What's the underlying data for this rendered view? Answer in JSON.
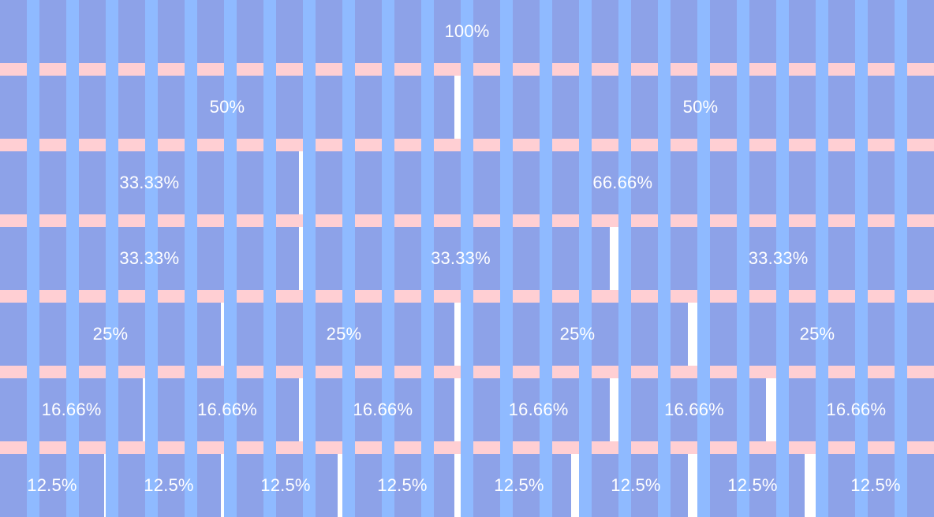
{
  "colors": {
    "cell": "#8da2e8",
    "column_stripe": "#8fbaff",
    "gutter": "#ffcfd3",
    "background": "#ffffff",
    "label": "#ffffff"
  },
  "grid": {
    "columns": 12,
    "rows": [
      {
        "span": 12,
        "labels": [
          "100%"
        ]
      },
      {
        "span": 6,
        "labels": [
          "50%",
          "50%"
        ]
      },
      {
        "span": [
          4,
          8
        ],
        "labels": [
          "33.33%",
          "66.66%"
        ]
      },
      {
        "span": 4,
        "labels": [
          "33.33%",
          "33.33%",
          "33.33%"
        ]
      },
      {
        "span": 3,
        "labels": [
          "25%",
          "25%",
          "25%",
          "25%"
        ]
      },
      {
        "span": 2,
        "labels": [
          "16.66%",
          "16.66%",
          "16.66%",
          "16.66%",
          "16.66%",
          "16.66%"
        ]
      },
      {
        "span": 1.5,
        "labels": [
          "12.5%",
          "12.5%",
          "12.5%",
          "12.5%",
          "12.5%",
          "12.5%",
          "12.5%",
          "12.5%"
        ]
      }
    ]
  }
}
